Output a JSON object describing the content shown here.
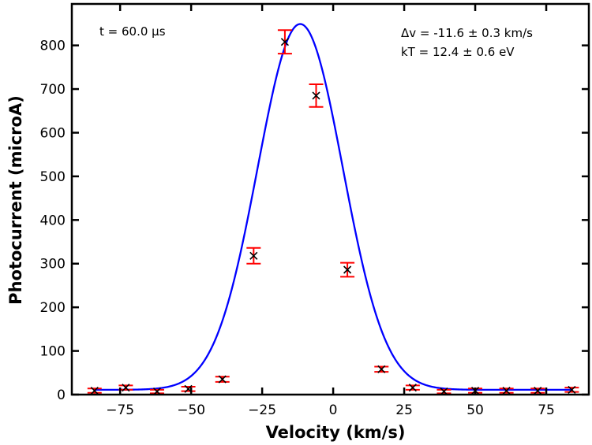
{
  "chart_data": {
    "type": "scatter",
    "title": "",
    "xlabel": "Velocity (km/s)",
    "ylabel": "Photocurrent (microA)",
    "xlim": [
      -92,
      90
    ],
    "ylim": [
      0,
      895
    ],
    "xticks": [
      -75,
      -50,
      -25,
      0,
      25,
      50,
      75
    ],
    "xtick_labels": [
      "−75",
      "−50",
      "−25",
      "0",
      "25",
      "50",
      "75"
    ],
    "yticks": [
      0,
      100,
      200,
      300,
      400,
      500,
      600,
      700,
      800
    ],
    "ytick_labels": [
      "0",
      "100",
      "200",
      "300",
      "400",
      "500",
      "600",
      "700",
      "800"
    ],
    "grid": false,
    "annotations": {
      "time": "t = 60.0 μs",
      "delta_v": "Δv = -11.6 ± 0.3 km/s",
      "kT": "kT = 12.4 ± 0.6 eV"
    },
    "series": [
      {
        "kind": "measurements",
        "marker": "x",
        "color": "#000000",
        "errorbar_color": "#ff0000",
        "x": [
          -84,
          -73,
          -62,
          -51,
          -39,
          -28,
          -17,
          -6,
          5,
          17,
          28,
          39,
          50,
          61,
          72,
          84
        ],
        "y": [
          9,
          16,
          7,
          13,
          35,
          318,
          808,
          685,
          286,
          58,
          16,
          7,
          9,
          9,
          9,
          11
        ],
        "yerr": [
          5,
          5,
          4,
          5,
          6,
          18,
          27,
          26,
          16,
          6,
          5,
          4,
          5,
          5,
          5,
          5
        ]
      },
      {
        "kind": "fit",
        "model": "gaussian",
        "color": "#0000ff",
        "center": -11.6,
        "amplitude": 838,
        "sigma": 15,
        "baseline": 11,
        "x_range": [
          -84,
          84
        ]
      }
    ]
  }
}
